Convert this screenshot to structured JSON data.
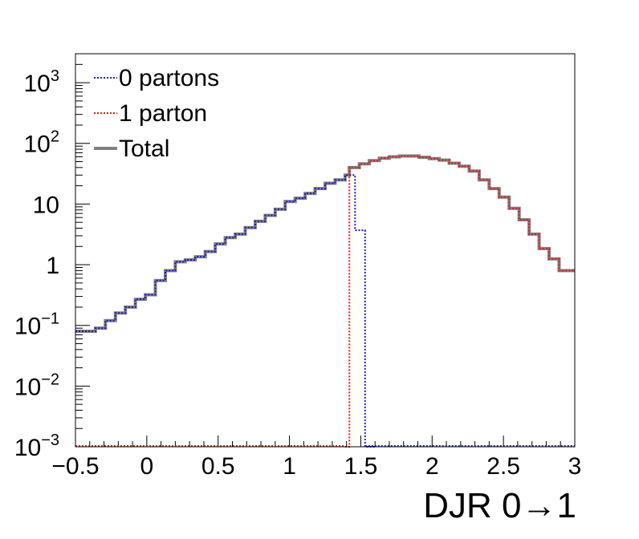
{
  "chart_data": {
    "type": "line",
    "xlabel": "DJR 0→1",
    "ylabel": "",
    "xlim": [
      -0.5,
      3.0
    ],
    "ylim": [
      0.001,
      3000
    ],
    "yscale": "log",
    "grid": false,
    "legend_position": "top-left",
    "x_ticks": [
      {
        "value": -0.5,
        "label": "−0.5"
      },
      {
        "value": 0,
        "label": "0"
      },
      {
        "value": 0.5,
        "label": "0.5"
      },
      {
        "value": 1,
        "label": "1"
      },
      {
        "value": 1.5,
        "label": "1.5"
      },
      {
        "value": 2,
        "label": "2"
      },
      {
        "value": 2.5,
        "label": "2.5"
      },
      {
        "value": 3,
        "label": "3"
      }
    ],
    "y_ticks": [
      {
        "value": 0.001,
        "base": "10",
        "exp": "−3"
      },
      {
        "value": 0.01,
        "base": "10",
        "exp": "−2"
      },
      {
        "value": 0.1,
        "base": "10",
        "exp": "−1"
      },
      {
        "value": 1,
        "base": "1",
        "exp": ""
      },
      {
        "value": 10,
        "base": "10",
        "exp": ""
      },
      {
        "value": 100,
        "base": "10",
        "exp": "2"
      },
      {
        "value": 1000,
        "base": "10",
        "exp": "3"
      }
    ],
    "bin_width": 0.07,
    "series": [
      {
        "name": "0 partons",
        "color": "#1a1acc",
        "style": "dotted",
        "values": [
          [
            -0.5,
            0.08
          ],
          [
            -0.43,
            0.08
          ],
          [
            -0.36,
            0.09
          ],
          [
            -0.29,
            0.12
          ],
          [
            -0.22,
            0.16
          ],
          [
            -0.15,
            0.2
          ],
          [
            -0.08,
            0.27
          ],
          [
            -0.01,
            0.32
          ],
          [
            0.06,
            0.55
          ],
          [
            0.13,
            0.8
          ],
          [
            0.2,
            1.12
          ],
          [
            0.27,
            1.2
          ],
          [
            0.34,
            1.35
          ],
          [
            0.41,
            1.65
          ],
          [
            0.48,
            2.2
          ],
          [
            0.55,
            2.8
          ],
          [
            0.62,
            3.2
          ],
          [
            0.69,
            4.1
          ],
          [
            0.76,
            5.2
          ],
          [
            0.83,
            6.5
          ],
          [
            0.9,
            8.2
          ],
          [
            0.97,
            11.0
          ],
          [
            1.04,
            12.5
          ],
          [
            1.11,
            15.0
          ],
          [
            1.18,
            18.0
          ],
          [
            1.25,
            22.0
          ],
          [
            1.32,
            25.0
          ],
          [
            1.39,
            30.0
          ],
          [
            1.46,
            3.7
          ],
          [
            1.53,
            0.001
          ]
        ]
      },
      {
        "name": "1 parton",
        "color": "#dd1c1c",
        "style": "dotted",
        "values": [
          [
            1.39,
            0.001
          ],
          [
            1.42,
            40.0
          ],
          [
            1.49,
            46.0
          ],
          [
            1.56,
            52.0
          ],
          [
            1.63,
            57.0
          ],
          [
            1.7,
            60.0
          ],
          [
            1.77,
            62.0
          ],
          [
            1.84,
            62.0
          ],
          [
            1.91,
            59.0
          ],
          [
            1.98,
            56.0
          ],
          [
            2.05,
            53.0
          ],
          [
            2.12,
            47.0
          ],
          [
            2.19,
            42.0
          ],
          [
            2.26,
            35.0
          ],
          [
            2.33,
            25.0
          ],
          [
            2.4,
            18.0
          ],
          [
            2.47,
            13.0
          ],
          [
            2.54,
            8.5
          ],
          [
            2.61,
            5.5
          ],
          [
            2.68,
            3.2
          ],
          [
            2.75,
            1.85
          ],
          [
            2.82,
            1.25
          ],
          [
            2.89,
            0.8
          ],
          [
            2.96,
            0.8
          ]
        ]
      },
      {
        "name": "Total",
        "color": "#808080",
        "style": "solid",
        "values": [
          [
            -0.5,
            0.08
          ],
          [
            -0.43,
            0.08
          ],
          [
            -0.36,
            0.09
          ],
          [
            -0.29,
            0.12
          ],
          [
            -0.22,
            0.16
          ],
          [
            -0.15,
            0.2
          ],
          [
            -0.08,
            0.27
          ],
          [
            -0.01,
            0.32
          ],
          [
            0.06,
            0.55
          ],
          [
            0.13,
            0.8
          ],
          [
            0.2,
            1.12
          ],
          [
            0.27,
            1.2
          ],
          [
            0.34,
            1.35
          ],
          [
            0.41,
            1.65
          ],
          [
            0.48,
            2.2
          ],
          [
            0.55,
            2.8
          ],
          [
            0.62,
            3.2
          ],
          [
            0.69,
            4.1
          ],
          [
            0.76,
            5.2
          ],
          [
            0.83,
            6.5
          ],
          [
            0.9,
            8.2
          ],
          [
            0.97,
            11.0
          ],
          [
            1.04,
            12.5
          ],
          [
            1.11,
            15.0
          ],
          [
            1.18,
            18.0
          ],
          [
            1.25,
            22.0
          ],
          [
            1.32,
            25.0
          ],
          [
            1.39,
            30.0
          ],
          [
            1.42,
            40.0
          ],
          [
            1.49,
            46.0
          ],
          [
            1.56,
            52.0
          ],
          [
            1.63,
            57.0
          ],
          [
            1.7,
            60.0
          ],
          [
            1.77,
            62.0
          ],
          [
            1.84,
            62.0
          ],
          [
            1.91,
            59.0
          ],
          [
            1.98,
            56.0
          ],
          [
            2.05,
            53.0
          ],
          [
            2.12,
            47.0
          ],
          [
            2.19,
            42.0
          ],
          [
            2.26,
            35.0
          ],
          [
            2.33,
            25.0
          ],
          [
            2.4,
            18.0
          ],
          [
            2.47,
            13.0
          ],
          [
            2.54,
            8.5
          ],
          [
            2.61,
            5.5
          ],
          [
            2.68,
            3.2
          ],
          [
            2.75,
            1.85
          ],
          [
            2.82,
            1.25
          ],
          [
            2.89,
            0.8
          ],
          [
            2.96,
            0.8
          ]
        ]
      }
    ]
  }
}
